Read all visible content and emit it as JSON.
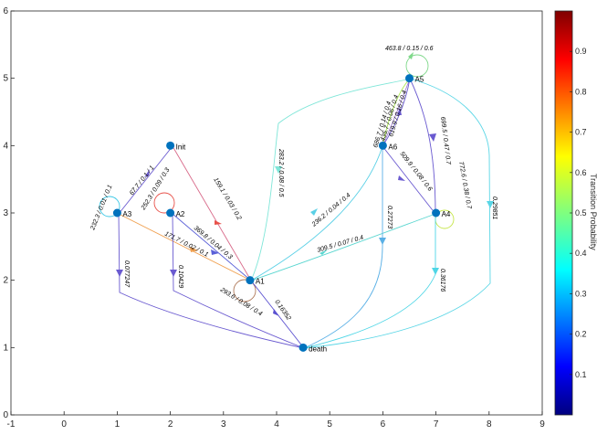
{
  "axes": {
    "x_ticks": [
      "-1",
      "0",
      "1",
      "2",
      "3",
      "4",
      "5",
      "6",
      "7",
      "8",
      "9"
    ],
    "y_ticks": [
      "0",
      "1",
      "2",
      "3",
      "4",
      "5",
      "6"
    ]
  },
  "colorbar": {
    "label": "Transition Probability",
    "ticks": [
      "0.1",
      "0.2",
      "0.3",
      "0.4",
      "0.5",
      "0.6",
      "0.7",
      "0.8",
      "0.9"
    ]
  },
  "nodes": [
    {
      "id": "Init",
      "x": 2,
      "y": 4
    },
    {
      "id": "A1",
      "x": 3.5,
      "y": 2
    },
    {
      "id": "A2",
      "x": 2,
      "y": 3
    },
    {
      "id": "A3",
      "x": 1,
      "y": 3
    },
    {
      "id": "A4",
      "x": 7,
      "y": 3
    },
    {
      "id": "A5",
      "x": 6.5,
      "y": 5
    },
    {
      "id": "A6",
      "x": 6,
      "y": 4
    },
    {
      "id": "death",
      "x": 4.5,
      "y": 1
    }
  ],
  "edge_labels": {
    "a3_self": "232.3 / 0.01 / 0.1",
    "a3_init": "67.7 / 0.1 / 1",
    "a2_self": "252.3 / 0.09 / 0.3",
    "init_a1": "159.1 / 0.03 / 0.2",
    "a2_a1": "369.8 / 0.04 / 0.3",
    "a3_a1": "171.7 / 0.02 / 0.1",
    "a1_a5": "283.2 / 0.08 / 0.5",
    "a1_a6": "236.2 / 0.04 / 0.4",
    "a1_a4": "309.5 / 0.07 / 0.4",
    "a1_self": "293.6 / 0.08 / 0.4",
    "a1_death": "0.16352",
    "a3_death": "0.077247",
    "a2_death": "0.10429",
    "a6_death": "0.27273",
    "a4_death": "0.36176",
    "a5_death": "0.29851",
    "a5_self": "463.8 / 0.15 / 0.6",
    "a6_a5a": "686.7 / 0.14 / 0.4",
    "a6_a5b": "435.7 / 0.06 / 0.4",
    "a6_a5c": "619.9 / 0.16 / 0.4",
    "a6_a4": "509.9 / 0.08 / 0.6",
    "a5_a4": "699.5 / 0.47 / 0.7",
    "a4_self": "772.6 / 0.38 / 0.7"
  }
}
